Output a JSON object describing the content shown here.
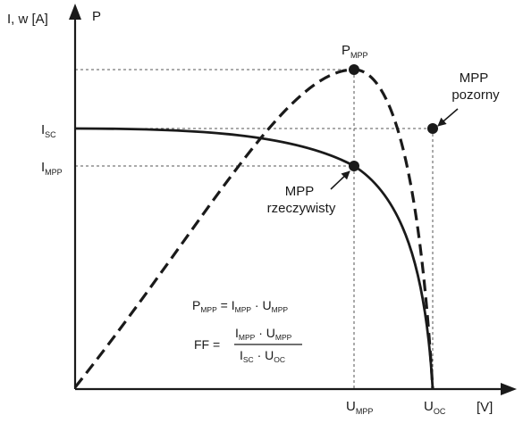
{
  "axes": {
    "y_label": "I, w [A]",
    "p_label": "P",
    "x_unit": "[V]"
  },
  "markers": {
    "isc": {
      "main": "I",
      "sub": "SC"
    },
    "impp": {
      "main": "I",
      "sub": "MPP"
    },
    "umpp": {
      "main": "U",
      "sub": "MPP"
    },
    "uoc": {
      "main": "U",
      "sub": "OC"
    },
    "pmpp": {
      "main": "P",
      "sub": "MPP"
    }
  },
  "annotations": {
    "apparent": [
      "MPP",
      "pozorny"
    ],
    "real": [
      "MPP",
      "rzeczywisty"
    ]
  },
  "formulas": {
    "pmpp": {
      "lhs": "P",
      "lhs_sub": "MPP",
      "eq": " = ",
      "t1": "I",
      "t1_sub": "MPP",
      "dot": " · ",
      "t2": "U",
      "t2_sub": "MPP"
    },
    "ff": {
      "lhs": "FF =",
      "num1": "I",
      "num1_sub": "MPP",
      "num_dot": " · ",
      "num2": "U",
      "num2_sub": "MPP",
      "den1": "I",
      "den1_sub": "SC",
      "den_dot": " · ",
      "den2": "U",
      "den2_sub": "OC"
    }
  },
  "colors": {
    "stroke": "#1a1a1a",
    "guide": "#555555",
    "background": "#ffffff"
  }
}
